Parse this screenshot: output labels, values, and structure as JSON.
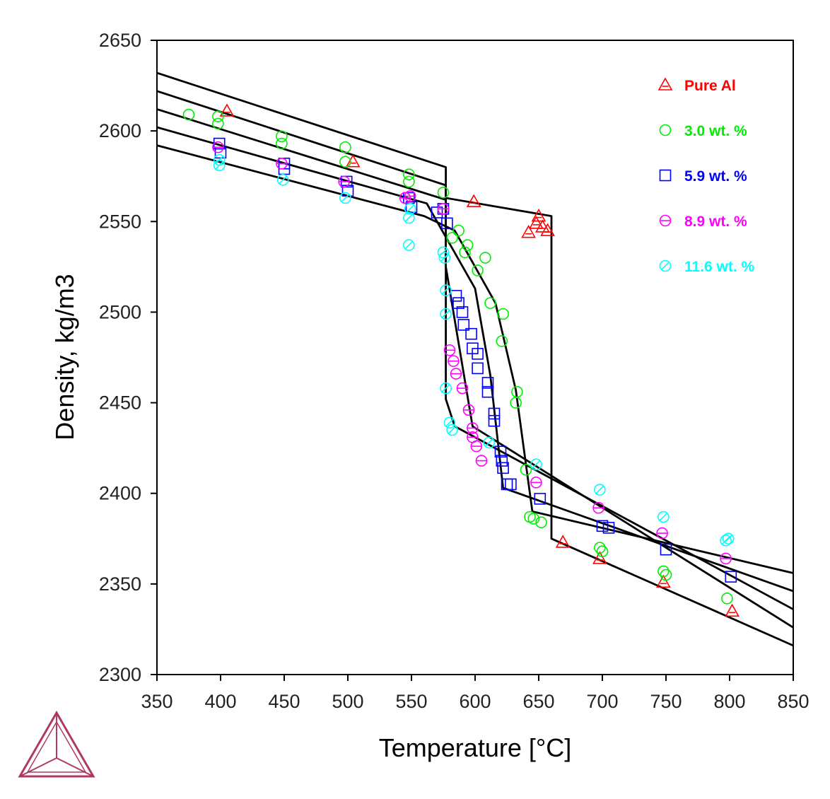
{
  "chart_data": {
    "type": "scatter",
    "xlabel": "Temperature [°C]",
    "ylabel": "Density, kg/m3",
    "xlim": [
      350,
      850
    ],
    "ylim": [
      2300,
      2650
    ],
    "xticks": [
      350,
      400,
      450,
      500,
      550,
      600,
      650,
      700,
      750,
      800,
      850
    ],
    "yticks": [
      2300,
      2350,
      2400,
      2450,
      2500,
      2550,
      2600,
      2650
    ],
    "grid": false,
    "legend_position": "top-right",
    "series": [
      {
        "name": "Pure Al",
        "color": "#ff0000",
        "marker": "triangle",
        "points": [
          [
            405,
            2611
          ],
          [
            504,
            2583
          ],
          [
            599,
            2561
          ],
          [
            642,
            2544
          ],
          [
            648,
            2549
          ],
          [
            650,
            2553
          ],
          [
            653,
            2547
          ],
          [
            657,
            2545
          ],
          [
            669,
            2373
          ],
          [
            698,
            2364
          ],
          [
            748,
            2351
          ],
          [
            802,
            2335
          ]
        ]
      },
      {
        "name": "3.0 wt. %",
        "color": "#00ee00",
        "marker": "circle",
        "points": [
          [
            375,
            2609
          ],
          [
            398,
            2608
          ],
          [
            398,
            2604
          ],
          [
            448,
            2597
          ],
          [
            448,
            2593
          ],
          [
            498,
            2591
          ],
          [
            498,
            2583
          ],
          [
            548,
            2576
          ],
          [
            548,
            2572
          ],
          [
            575,
            2566
          ],
          [
            582,
            2541
          ],
          [
            587,
            2545
          ],
          [
            592,
            2533
          ],
          [
            594,
            2537
          ],
          [
            602,
            2523
          ],
          [
            608,
            2530
          ],
          [
            612,
            2505
          ],
          [
            621,
            2484
          ],
          [
            622,
            2499
          ],
          [
            632,
            2450
          ],
          [
            633,
            2456
          ],
          [
            640,
            2413
          ],
          [
            643,
            2387
          ],
          [
            646,
            2386
          ],
          [
            652,
            2384
          ],
          [
            698,
            2370
          ],
          [
            700,
            2368
          ],
          [
            748,
            2357
          ],
          [
            750,
            2355
          ],
          [
            798,
            2342
          ]
        ]
      },
      {
        "name": "5.9 wt. %",
        "color": "#0000ff",
        "marker": "square",
        "points": [
          [
            399,
            2593
          ],
          [
            400,
            2588
          ],
          [
            450,
            2582
          ],
          [
            450,
            2579
          ],
          [
            499,
            2572
          ],
          [
            500,
            2567
          ],
          [
            548,
            2563
          ],
          [
            550,
            2558
          ],
          [
            570,
            2555
          ],
          [
            575,
            2557
          ],
          [
            578,
            2549
          ],
          [
            585,
            2509
          ],
          [
            587,
            2505
          ],
          [
            590,
            2500
          ],
          [
            591,
            2493
          ],
          [
            597,
            2488
          ],
          [
            598,
            2480
          ],
          [
            602,
            2477
          ],
          [
            602,
            2469
          ],
          [
            610,
            2461
          ],
          [
            610,
            2456
          ],
          [
            615,
            2444
          ],
          [
            615,
            2440
          ],
          [
            620,
            2423
          ],
          [
            621,
            2418
          ],
          [
            622,
            2414
          ],
          [
            625,
            2405
          ],
          [
            628,
            2405
          ],
          [
            651,
            2397
          ],
          [
            700,
            2382
          ],
          [
            705,
            2381
          ],
          [
            750,
            2369
          ],
          [
            801,
            2354
          ]
        ]
      },
      {
        "name": "8.9 wt. %",
        "color": "#ff00ff",
        "marker": "circle-dash",
        "points": [
          [
            398,
            2591
          ],
          [
            448,
            2582
          ],
          [
            497,
            2572
          ],
          [
            545,
            2563
          ],
          [
            549,
            2564
          ],
          [
            575,
            2557
          ],
          [
            580,
            2479
          ],
          [
            583,
            2473
          ],
          [
            585,
            2466
          ],
          [
            590,
            2458
          ],
          [
            595,
            2446
          ],
          [
            598,
            2436
          ],
          [
            598,
            2431
          ],
          [
            601,
            2426
          ],
          [
            605,
            2418
          ],
          [
            648,
            2406
          ],
          [
            697,
            2392
          ],
          [
            747,
            2378
          ],
          [
            797,
            2364
          ]
        ]
      },
      {
        "name": "11.6 wt. %",
        "color": "#00ffff",
        "marker": "circle-slash",
        "points": [
          [
            399,
            2584
          ],
          [
            399,
            2581
          ],
          [
            449,
            2573
          ],
          [
            498,
            2563
          ],
          [
            548,
            2537
          ],
          [
            548,
            2552
          ],
          [
            549,
            2557
          ],
          [
            575,
            2533
          ],
          [
            576,
            2530
          ],
          [
            577,
            2512
          ],
          [
            577,
            2499
          ],
          [
            577,
            2458
          ],
          [
            580,
            2439
          ],
          [
            582,
            2435
          ],
          [
            611,
            2428
          ],
          [
            648,
            2416
          ],
          [
            698,
            2402
          ],
          [
            748,
            2387
          ],
          [
            797,
            2374
          ],
          [
            799,
            2375
          ]
        ]
      }
    ],
    "model_lines": [
      [
        [
          350,
          2632
        ],
        [
          577,
          2580
        ],
        [
          577,
          2563
        ],
        [
          660,
          2553
        ],
        [
          660,
          2375
        ],
        [
          850,
          2316
        ]
      ],
      [
        [
          350,
          2622
        ],
        [
          577,
          2570
        ],
        [
          577,
          2525
        ],
        [
          598,
          2437
        ],
        [
          850,
          2326
        ]
      ],
      [
        [
          350,
          2612
        ],
        [
          577,
          2562
        ],
        [
          577,
          2452
        ],
        [
          584,
          2437
        ],
        [
          850,
          2336
        ]
      ],
      [
        [
          350,
          2602
        ],
        [
          562,
          2560
        ],
        [
          600,
          2513
        ],
        [
          612,
          2465
        ],
        [
          622,
          2403
        ],
        [
          850,
          2346
        ]
      ],
      [
        [
          350,
          2592
        ],
        [
          560,
          2553
        ],
        [
          584,
          2545
        ],
        [
          616,
          2505
        ],
        [
          632,
          2457
        ],
        [
          645,
          2390
        ],
        [
          850,
          2356
        ]
      ]
    ]
  }
}
